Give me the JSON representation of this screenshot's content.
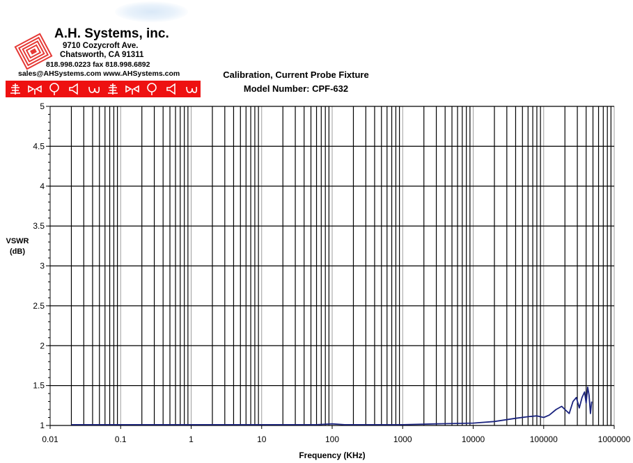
{
  "letterhead": {
    "company": "A.H. Systems, inc.",
    "address_line1": "9710 Cozycroft Ave.",
    "address_line2": "Chatsworth, CA 91311",
    "phone_fax": "818.998.0223 fax 818.998.6892",
    "web": "sales@AHSystems.com www.AHSystems.com",
    "logo_icon": "antenna-coil-logo-icon",
    "bar_icons": [
      "antenna-icon",
      "dipole-icon",
      "loop-icon",
      "horn-icon",
      "probe-icon",
      "antenna-icon",
      "dipole-icon",
      "loop-icon",
      "horn-icon",
      "probe-icon"
    ],
    "bar_color": "#ee1111"
  },
  "chart_data": {
    "type": "line",
    "title": "Calibration, Current Probe Fixture",
    "subtitle": "Model Number: CPF-632",
    "xlabel": "Frequency (KHz)",
    "ylabel": "VSWR\n(dB)",
    "x_scale": "log",
    "xlim": [
      0.01,
      1000000
    ],
    "ylim": [
      1,
      5
    ],
    "x_ticks": [
      "0.01",
      "0.1",
      "1",
      "10",
      "100",
      "1000",
      "10000",
      "100000",
      "1000000"
    ],
    "y_ticks": [
      "1",
      "1.5",
      "2",
      "2.5",
      "3",
      "3.5",
      "4",
      "4.5",
      "5"
    ],
    "grid": true,
    "line_color": "#1a237e",
    "series": [
      {
        "x": [
          0.02,
          1,
          10,
          60,
          100,
          150,
          300,
          1000,
          3000,
          10000,
          20000,
          40000,
          60000,
          80000,
          100000,
          120000,
          150000,
          180000,
          200000,
          230000,
          260000,
          290000,
          320000,
          350000,
          380000,
          400000,
          420000,
          440000,
          460000,
          480000
        ],
        "y": [
          1.01,
          1.01,
          1.01,
          1.01,
          1.02,
          1.01,
          1.01,
          1.01,
          1.02,
          1.03,
          1.05,
          1.09,
          1.11,
          1.12,
          1.1,
          1.13,
          1.2,
          1.24,
          1.2,
          1.15,
          1.3,
          1.35,
          1.22,
          1.35,
          1.42,
          1.28,
          1.48,
          1.38,
          1.15,
          1.3
        ]
      }
    ]
  }
}
